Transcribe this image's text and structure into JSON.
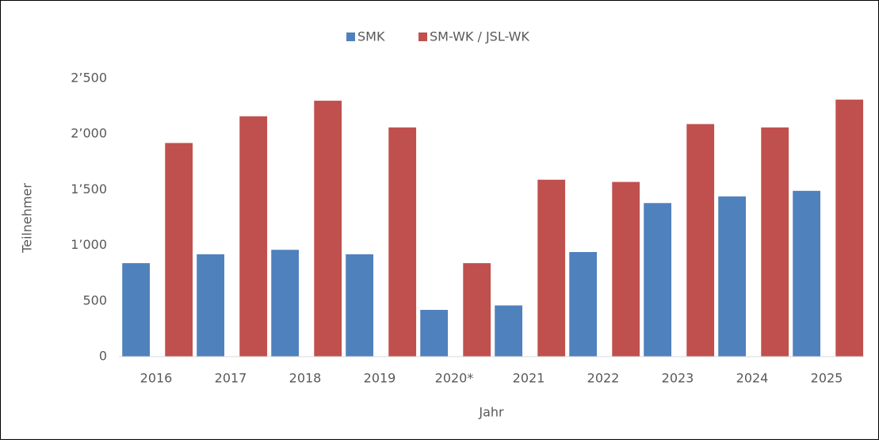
{
  "chart_data": {
    "type": "bar",
    "x_label": "Jahr",
    "y_label": "Teilnehmer",
    "categories": [
      "2016",
      "2017",
      "2018",
      "2019",
      "2020*",
      "2021",
      "2022",
      "2023",
      "2024",
      "2025"
    ],
    "series": [
      {
        "name": "SMK",
        "color": "#4f81bd",
        "values": [
          840,
          920,
          960,
          920,
          420,
          460,
          940,
          1380,
          1440,
          1490
        ]
      },
      {
        "name": "SM-WK / JSL-WK",
        "color": "#c0504d",
        "values": [
          1920,
          2160,
          2300,
          2060,
          840,
          1590,
          1570,
          2090,
          2060,
          2310
        ]
      }
    ],
    "ylim": [
      0,
      2500
    ],
    "yticks": [
      0,
      500,
      {
        "value": 1000,
        "label": "1’000"
      },
      {
        "value": 1500,
        "label": "1’500"
      },
      {
        "value": 2000,
        "label": "2’000"
      },
      {
        "value": 2500,
        "label": "2’500"
      }
    ],
    "grid": false,
    "legend": "top"
  }
}
